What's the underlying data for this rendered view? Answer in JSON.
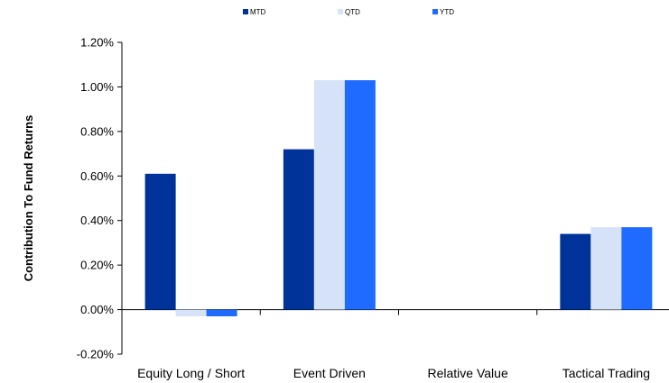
{
  "chart_data": {
    "type": "bar",
    "title": "",
    "xlabel": "",
    "ylabel": "Contribution To Fund Returns",
    "categories": [
      "Equity Long / Short",
      "Event Driven",
      "Relative Value",
      "Tactical Trading"
    ],
    "series": [
      {
        "name": "MTD",
        "color": "#003399",
        "values": [
          0.61,
          0.72,
          0.0,
          0.34
        ]
      },
      {
        "name": "QTD",
        "color": "#D6E2F8",
        "values": [
          -0.03,
          1.03,
          0.0,
          0.37
        ]
      },
      {
        "name": "YTD",
        "color": "#1F6BFF",
        "values": [
          -0.03,
          1.03,
          0.0,
          0.37
        ]
      }
    ],
    "ylim": [
      -0.2,
      1.2
    ],
    "yticks": [
      -0.2,
      0.0,
      0.2,
      0.4,
      0.6,
      0.8,
      1.0,
      1.2
    ],
    "ytick_labels": [
      "-0.20%",
      "0.00%",
      "0.20%",
      "0.40%",
      "0.60%",
      "0.80%",
      "1.00%",
      "1.20%"
    ],
    "grid": false,
    "legend_position": "top"
  }
}
